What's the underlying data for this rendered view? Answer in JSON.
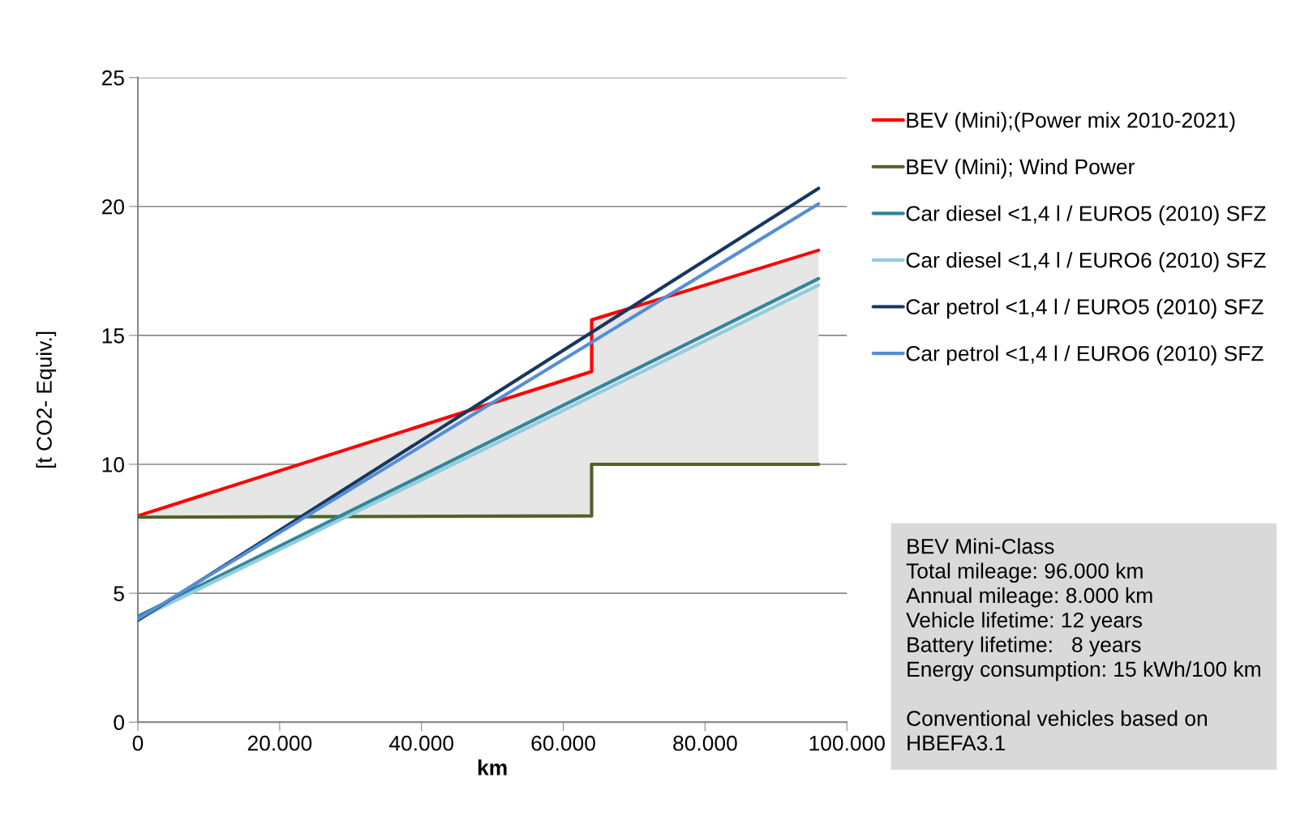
{
  "chart_data": {
    "type": "line",
    "xlabel": "km",
    "ylabel": "[t CO2- Equiv.]",
    "xlim": [
      0,
      100000
    ],
    "ylim": [
      0,
      25
    ],
    "xticks": [
      0,
      {
        "value": 20000,
        "label": "20.000"
      },
      {
        "value": 40000,
        "label": "40.000"
      },
      {
        "value": 60000,
        "label": "60.000"
      },
      {
        "value": 80000,
        "label": "80.000"
      },
      {
        "value": 100000,
        "label": "100.000"
      }
    ],
    "yticks": [
      0,
      5,
      10,
      15,
      20,
      25
    ],
    "grid": "y",
    "legend": "right",
    "marker": "none",
    "line_style": "solid",
    "series": [
      {
        "name": "BEV (Mini);(Power mix 2010-2021)",
        "color": "#ff0000",
        "x": [
          0,
          64000,
          64000,
          96000
        ],
        "values": [
          8.0,
          13.6,
          15.6,
          18.3
        ],
        "lower": [
          7.95,
          8.0,
          10.0,
          10.0
        ],
        "upper": [
          8.0,
          13.6,
          15.6,
          18.3
        ]
      },
      {
        "name": "BEV (Mini); Wind Power",
        "color": "#4f6228",
        "x": [
          0,
          64000,
          64000,
          96000
        ],
        "values": [
          7.95,
          8.0,
          10.0,
          10.0
        ]
      },
      {
        "name": "Car diesel <1,4 l / EURO5 (2010) SFZ",
        "color": "#31859c",
        "x": [
          0,
          96000
        ],
        "values": [
          4.1,
          17.2
        ]
      },
      {
        "name": "Car diesel <1,4 l / EURO6 (2010) SFZ",
        "color": "#93cddd",
        "x": [
          0,
          96000
        ],
        "values": [
          4.0,
          16.95
        ]
      },
      {
        "name": "Car petrol <1,4 l / EURO5 (2010) SFZ",
        "color": "#17375e",
        "x": [
          0,
          96000
        ],
        "values": [
          3.95,
          20.7
        ]
      },
      {
        "name": "Car petrol <1,4 l / EURO6 (2010) SFZ",
        "color": "#558ed5",
        "x": [
          0,
          96000
        ],
        "values": [
          4.0,
          20.1
        ]
      }
    ],
    "annotations": [
      "BEV Mini-Class\nTotal mileage: 96.000 km\nAnnual mileage: 8.000 km\nVehicle lifetime: 12 years\nBattery lifetime:   8 years\nEnergy consumption: 15 kWh/100 km\n\nConventional vehicles based on\nHBEFA3.1"
    ]
  }
}
